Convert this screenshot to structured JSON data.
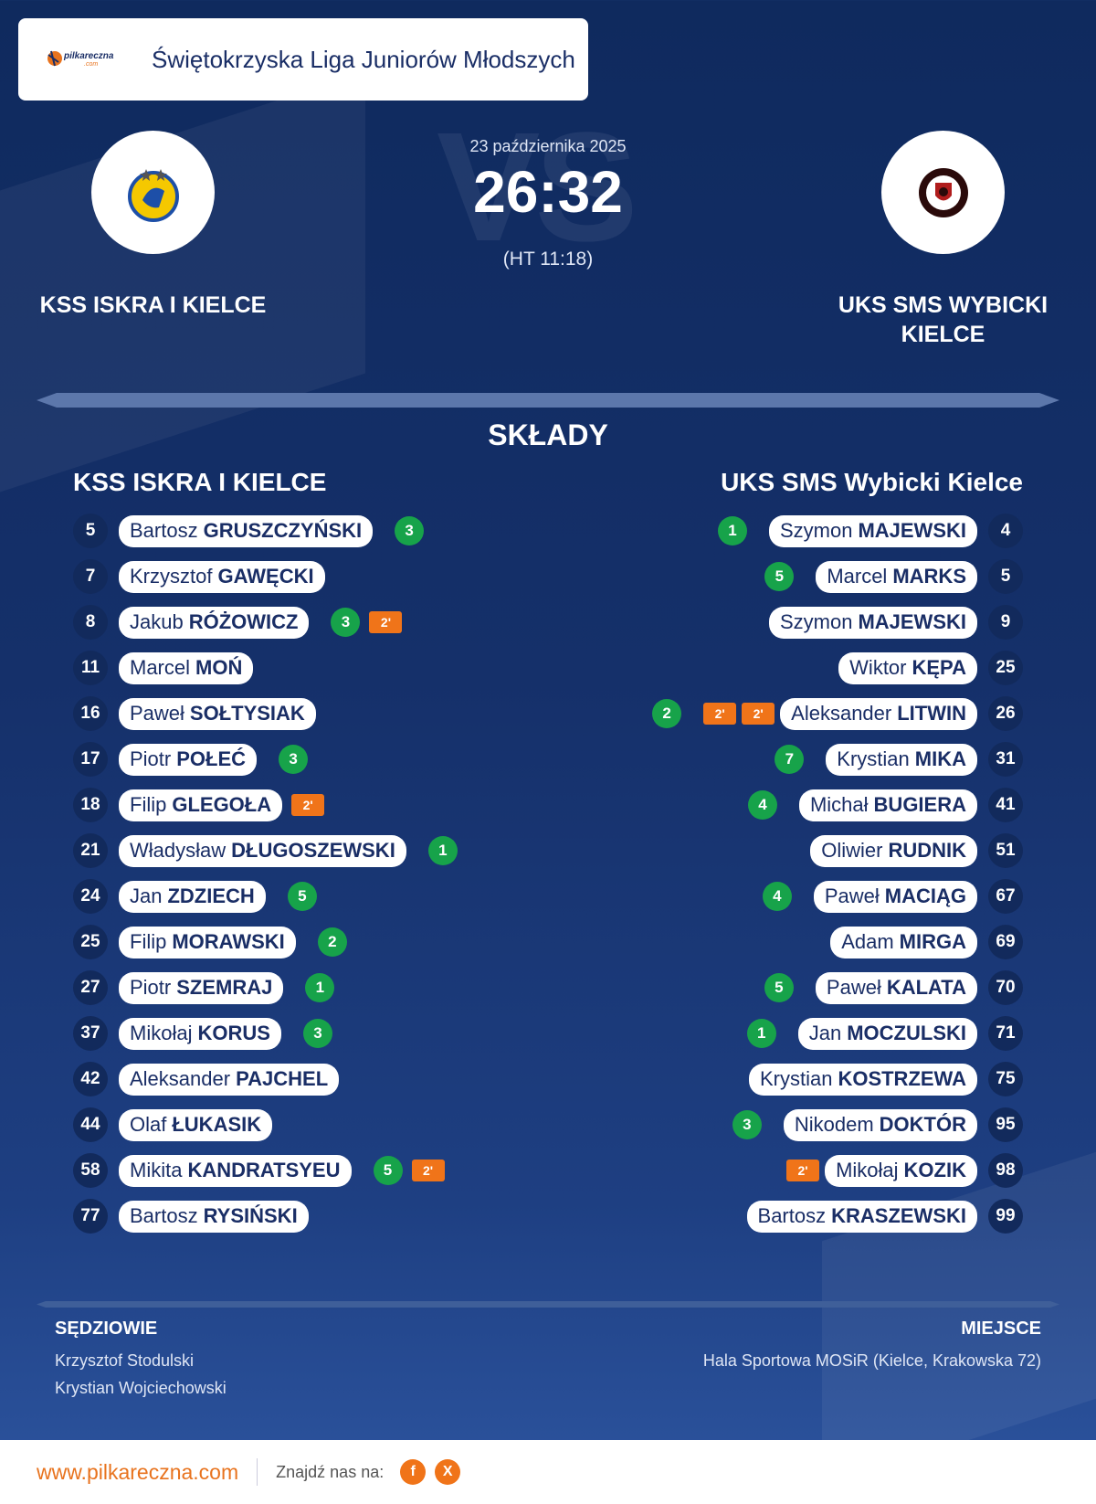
{
  "league": {
    "logo_text": "pilkareczna",
    "logo_sub": ".com",
    "name": "Świętokrzyska Liga Juniorów Młodszych"
  },
  "match": {
    "date": "23 października 2025",
    "score": "26:32",
    "halftime": "(HT 11:18)",
    "vs_watermark": "VS",
    "home_team": "KSS ISKRA I KIELCE",
    "away_team": "UKS SMS WYBICKI KIELCE"
  },
  "lineups": {
    "title": "SKŁADY",
    "home_title": "KSS ISKRA I KIELCE",
    "away_title": "UKS SMS Wybicki Kielce",
    "home": [
      {
        "number": "5",
        "first": "Bartosz",
        "last": "GRUSZCZYŃSKI",
        "goals": "3",
        "penalties": []
      },
      {
        "number": "7",
        "first": "Krzysztof",
        "last": "GAWĘCKI",
        "goals": "",
        "penalties": []
      },
      {
        "number": "8",
        "first": "Jakub",
        "last": "RÓŻOWICZ",
        "goals": "3",
        "penalties": [
          "2'"
        ]
      },
      {
        "number": "11",
        "first": "Marcel",
        "last": "MOŃ",
        "goals": "",
        "penalties": []
      },
      {
        "number": "16",
        "first": "Paweł",
        "last": "SOŁTYSIAK",
        "goals": "",
        "penalties": []
      },
      {
        "number": "17",
        "first": "Piotr",
        "last": "POŁEĆ",
        "goals": "3",
        "penalties": []
      },
      {
        "number": "18",
        "first": "Filip",
        "last": "GLEGOŁA",
        "goals": "",
        "penalties": [
          "2'"
        ]
      },
      {
        "number": "21",
        "first": "Władysław",
        "last": "DŁUGOSZEWSKI",
        "goals": "1",
        "penalties": []
      },
      {
        "number": "24",
        "first": "Jan",
        "last": "ZDZIECH",
        "goals": "5",
        "penalties": []
      },
      {
        "number": "25",
        "first": "Filip",
        "last": "MORAWSKI",
        "goals": "2",
        "penalties": []
      },
      {
        "number": "27",
        "first": "Piotr",
        "last": "SZEMRAJ",
        "goals": "1",
        "penalties": []
      },
      {
        "number": "37",
        "first": "Mikołaj",
        "last": "KORUS",
        "goals": "3",
        "penalties": []
      },
      {
        "number": "42",
        "first": "Aleksander",
        "last": "PAJCHEL",
        "goals": "",
        "penalties": []
      },
      {
        "number": "44",
        "first": "Olaf",
        "last": "ŁUKASIK",
        "goals": "",
        "penalties": []
      },
      {
        "number": "58",
        "first": "Mikita",
        "last": "KANDRATSYEU",
        "goals": "5",
        "penalties": [
          "2'"
        ]
      },
      {
        "number": "77",
        "first": "Bartosz",
        "last": "RYSIŃSKI",
        "goals": "",
        "penalties": []
      }
    ],
    "away": [
      {
        "number": "4",
        "first": "Szymon",
        "last": "MAJEWSKI",
        "goals": "1",
        "penalties": []
      },
      {
        "number": "5",
        "first": "Marcel",
        "last": "MARKS",
        "goals": "5",
        "penalties": []
      },
      {
        "number": "9",
        "first": "Szymon",
        "last": "MAJEWSKI",
        "goals": "",
        "penalties": []
      },
      {
        "number": "25",
        "first": "Wiktor",
        "last": "KĘPA",
        "goals": "",
        "penalties": []
      },
      {
        "number": "26",
        "first": "Aleksander",
        "last": "LITWIN",
        "goals": "2",
        "penalties": [
          "2'",
          "2'"
        ]
      },
      {
        "number": "31",
        "first": "Krystian",
        "last": "MIKA",
        "goals": "7",
        "penalties": []
      },
      {
        "number": "41",
        "first": "Michał",
        "last": "BUGIERA",
        "goals": "4",
        "penalties": []
      },
      {
        "number": "51",
        "first": "Oliwier",
        "last": "RUDNIK",
        "goals": "",
        "penalties": []
      },
      {
        "number": "67",
        "first": "Paweł",
        "last": "MACIĄG",
        "goals": "4",
        "penalties": []
      },
      {
        "number": "69",
        "first": "Adam",
        "last": "MIRGA",
        "goals": "",
        "penalties": []
      },
      {
        "number": "70",
        "first": "Paweł",
        "last": "KALATA",
        "goals": "5",
        "penalties": []
      },
      {
        "number": "71",
        "first": "Jan",
        "last": "MOCZULSKI",
        "goals": "1",
        "penalties": []
      },
      {
        "number": "75",
        "first": "Krystian",
        "last": "KOSTRZEWA",
        "goals": "",
        "penalties": []
      },
      {
        "number": "95",
        "first": "Nikodem",
        "last": "DOKTÓR",
        "goals": "3",
        "penalties": []
      },
      {
        "number": "98",
        "first": "Mikołaj",
        "last": "KOZIK",
        "goals": "",
        "penalties": [
          "2'"
        ]
      },
      {
        "number": "99",
        "first": "Bartosz",
        "last": "KRASZEWSKI",
        "goals": "",
        "penalties": []
      }
    ]
  },
  "officials": {
    "title": "SĘDZIOWIE",
    "names": [
      "Krzysztof Stodulski",
      "Krystian Wojciechowski"
    ]
  },
  "venue": {
    "title": "MIEJSCE",
    "name": "Hala Sportowa MOSiR (Kielce, Krakowska 72)"
  },
  "footer": {
    "site": "www.pilkareczna.com",
    "find_us": "Znajdź nas na:",
    "social": [
      "f",
      "X"
    ]
  },
  "colors": {
    "background": "#15306a",
    "goal_badge": "#17a34a",
    "penalty_badge": "#f07419",
    "brand_orange": "#e8731e",
    "team_text": "#1a2e66"
  }
}
